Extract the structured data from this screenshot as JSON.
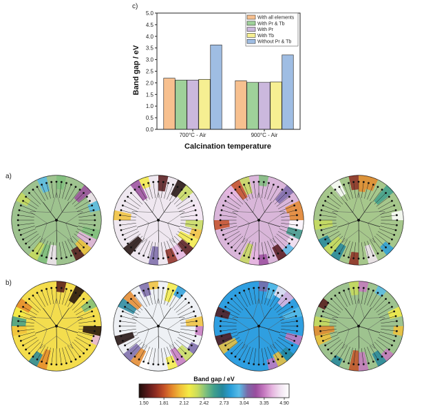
{
  "chart_data": [
    {
      "type": "bar",
      "panel_label": "c)",
      "categories": [
        "700°C - Air",
        "900°C - Air"
      ],
      "series": [
        {
          "name": "With all elements",
          "color": "#f7c08f",
          "values": [
            2.2,
            2.09
          ]
        },
        {
          "name": "With Pr & Tb",
          "color": "#9fd19a",
          "values": [
            2.12,
            2.02
          ]
        },
        {
          "name": "With Pr",
          "color": "#cbb8dd",
          "values": [
            2.12,
            2.02
          ]
        },
        {
          "name": "With Tb",
          "color": "#f6ef92",
          "values": [
            2.15,
            2.04
          ]
        },
        {
          "name": "Without Pr & Tb",
          "color": "#9fbde3",
          "values": [
            3.63,
            3.2
          ]
        }
      ],
      "xlabel": "Calcination temperature",
      "ylabel": "Band gap  / eV",
      "ylim": [
        0,
        5
      ],
      "yticks": [
        "0.0",
        "0.5",
        "1.0",
        "1.5",
        "2.0",
        "2.5",
        "3.0",
        "3.5",
        "4.0",
        "4.5",
        "5.0"
      ],
      "legend_position": "top-right"
    },
    {
      "type": "heatmap",
      "rows": [
        {
          "label": "a)",
          "dominant_colors": [
            "#9ec38f",
            "#efe7f0",
            "#d9b6d9",
            "#a6c78c"
          ]
        },
        {
          "label": "b)",
          "dominant_colors": [
            "#f3dd4e",
            "#eef1f5",
            "#2f9fe0",
            "#9ec38f"
          ]
        }
      ],
      "colorbar": {
        "title": "Band gap / eV",
        "tick_labels": [
          "1.50",
          "1.81",
          "2.12",
          "2.42",
          "2.73",
          "3.04",
          "3.35",
          "4.90"
        ],
        "colors": [
          "#1e0d0a",
          "#55181a",
          "#8e2c22",
          "#c45127",
          "#e58a2c",
          "#f1c23a",
          "#f4ec46",
          "#c8dc5d",
          "#7fc07d",
          "#3f9f8c",
          "#25879c",
          "#2a9ed9",
          "#58bce8",
          "#7a6aa8",
          "#9a4d9e",
          "#c679c0",
          "#e6b6e0",
          "#f3e6f3",
          "#ffffff"
        ]
      }
    }
  ]
}
